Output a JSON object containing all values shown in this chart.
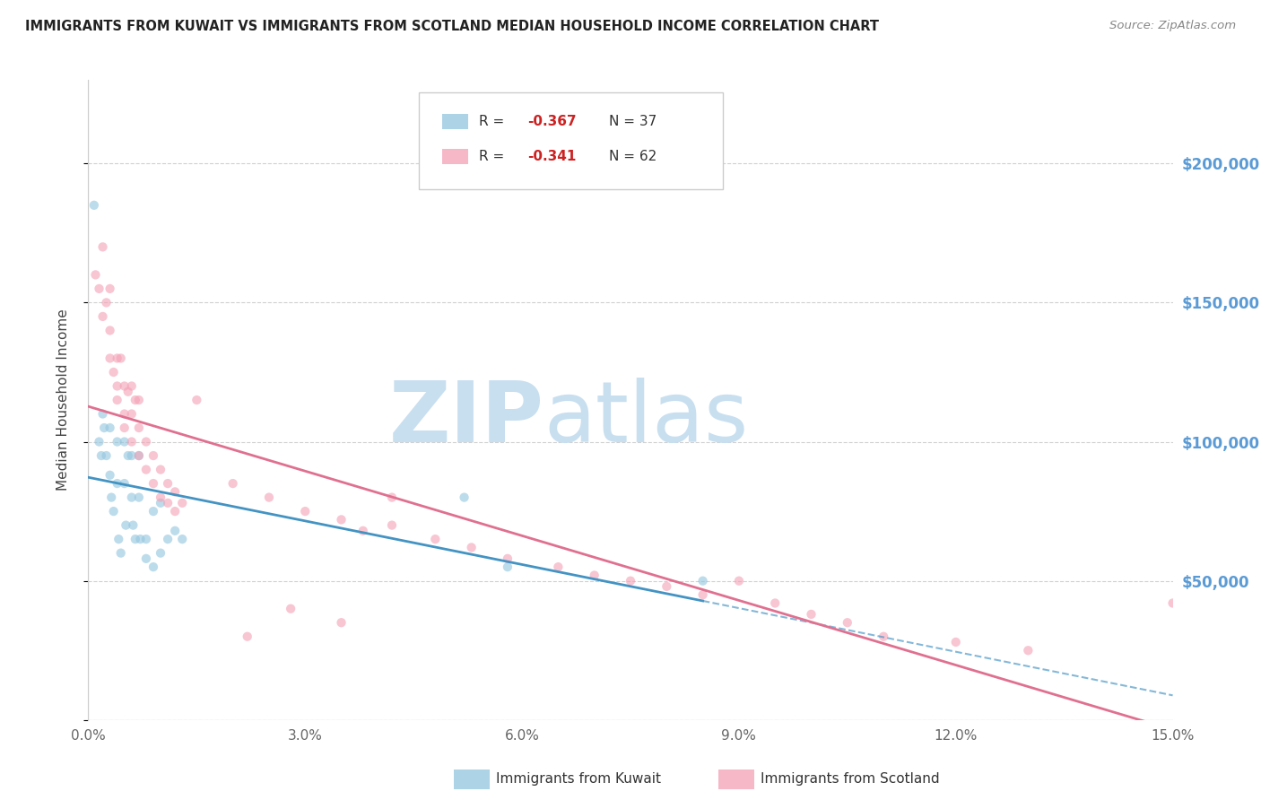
{
  "title": "IMMIGRANTS FROM KUWAIT VS IMMIGRANTS FROM SCOTLAND MEDIAN HOUSEHOLD INCOME CORRELATION CHART",
  "source_text": "Source: ZipAtlas.com",
  "ylabel": "Median Household Income",
  "x_min": 0.0,
  "x_max": 0.15,
  "y_min": 0,
  "y_max": 230000,
  "yticks": [
    0,
    50000,
    100000,
    150000,
    200000
  ],
  "ytick_labels": [
    "",
    "$50,000",
    "$100,000",
    "$150,000",
    "$200,000"
  ],
  "kuwait_color": "#92c5de",
  "scotland_color": "#f4a0b5",
  "kuwait_line_color": "#4393c3",
  "scotland_line_color": "#e07090",
  "watermark_zip": "ZIP",
  "watermark_atlas": "atlas",
  "watermark_color_zip": "#c8dff0",
  "watermark_color_atlas": "#c8dff0",
  "kuwait_x": [
    0.0008,
    0.0015,
    0.0018,
    0.002,
    0.0022,
    0.0025,
    0.003,
    0.003,
    0.0032,
    0.0035,
    0.004,
    0.004,
    0.0042,
    0.0045,
    0.005,
    0.005,
    0.0052,
    0.0055,
    0.006,
    0.006,
    0.0062,
    0.0065,
    0.007,
    0.007,
    0.0072,
    0.008,
    0.008,
    0.009,
    0.009,
    0.01,
    0.01,
    0.011,
    0.012,
    0.013,
    0.052,
    0.058,
    0.085
  ],
  "kuwait_y": [
    185000,
    100000,
    95000,
    110000,
    105000,
    95000,
    105000,
    88000,
    80000,
    75000,
    100000,
    85000,
    65000,
    60000,
    100000,
    85000,
    70000,
    95000,
    95000,
    80000,
    70000,
    65000,
    95000,
    80000,
    65000,
    65000,
    58000,
    75000,
    55000,
    78000,
    60000,
    65000,
    68000,
    65000,
    80000,
    55000,
    50000
  ],
  "scotland_x": [
    0.001,
    0.0015,
    0.002,
    0.002,
    0.0025,
    0.003,
    0.003,
    0.003,
    0.0035,
    0.004,
    0.004,
    0.004,
    0.0045,
    0.005,
    0.005,
    0.005,
    0.0055,
    0.006,
    0.006,
    0.006,
    0.0065,
    0.007,
    0.007,
    0.007,
    0.008,
    0.008,
    0.009,
    0.009,
    0.01,
    0.01,
    0.011,
    0.011,
    0.012,
    0.012,
    0.013,
    0.015,
    0.02,
    0.025,
    0.03,
    0.035,
    0.038,
    0.042,
    0.048,
    0.053,
    0.058,
    0.065,
    0.07,
    0.075,
    0.08,
    0.085,
    0.09,
    0.095,
    0.1,
    0.105,
    0.11,
    0.12,
    0.13,
    0.035,
    0.022,
    0.028,
    0.042,
    0.15
  ],
  "scotland_y": [
    160000,
    155000,
    170000,
    145000,
    150000,
    155000,
    140000,
    130000,
    125000,
    130000,
    115000,
    120000,
    130000,
    120000,
    110000,
    105000,
    118000,
    120000,
    110000,
    100000,
    115000,
    115000,
    105000,
    95000,
    100000,
    90000,
    95000,
    85000,
    90000,
    80000,
    85000,
    78000,
    82000,
    75000,
    78000,
    115000,
    85000,
    80000,
    75000,
    72000,
    68000,
    70000,
    65000,
    62000,
    58000,
    55000,
    52000,
    50000,
    48000,
    45000,
    50000,
    42000,
    38000,
    35000,
    30000,
    28000,
    25000,
    35000,
    30000,
    40000,
    80000,
    42000
  ]
}
